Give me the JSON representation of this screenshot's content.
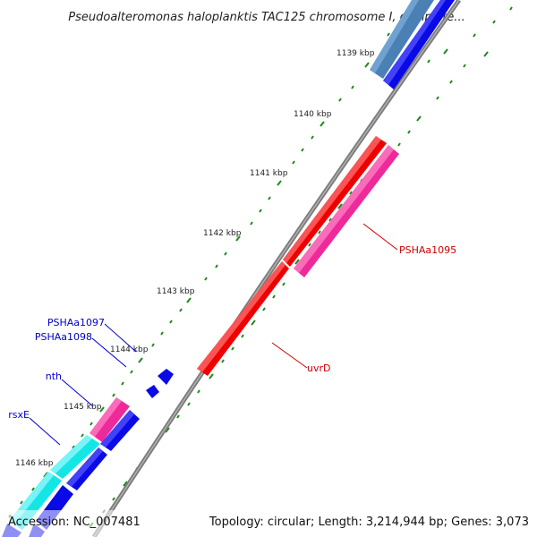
{
  "title": "Pseudoalteromonas haloplanktis TAC125 chromosome I, complete...",
  "accession": "Accession: NC_007481",
  "summary": "Topology: circular; Length: 3,214,944 bp; Genes: 3,073",
  "kbp_ticks": [
    "1139 kbp",
    "1140 kbp",
    "1141 kbp",
    "1142 kbp",
    "1143 kbp",
    "1144 kbp",
    "1145 kbp",
    "1146 kbp"
  ],
  "gene_labels": {
    "PSHAa1095": "PSHAa1095",
    "uvrD": "uvrD",
    "PSHAa1097": "PSHAa1097",
    "PSHAa1098": "PSHAa1098",
    "nth": "nth",
    "rsxE": "rsxE"
  },
  "colors": {
    "blue": "#0a0ae6",
    "steel": "#4a80b4",
    "red": "#ee0000",
    "pink": "#ee2a9a",
    "cyan": "#14e6e6",
    "backbone": "#808080",
    "tick": "#1a8a1a",
    "label_blue": "#0000cc",
    "label_red": "#cc0000"
  }
}
